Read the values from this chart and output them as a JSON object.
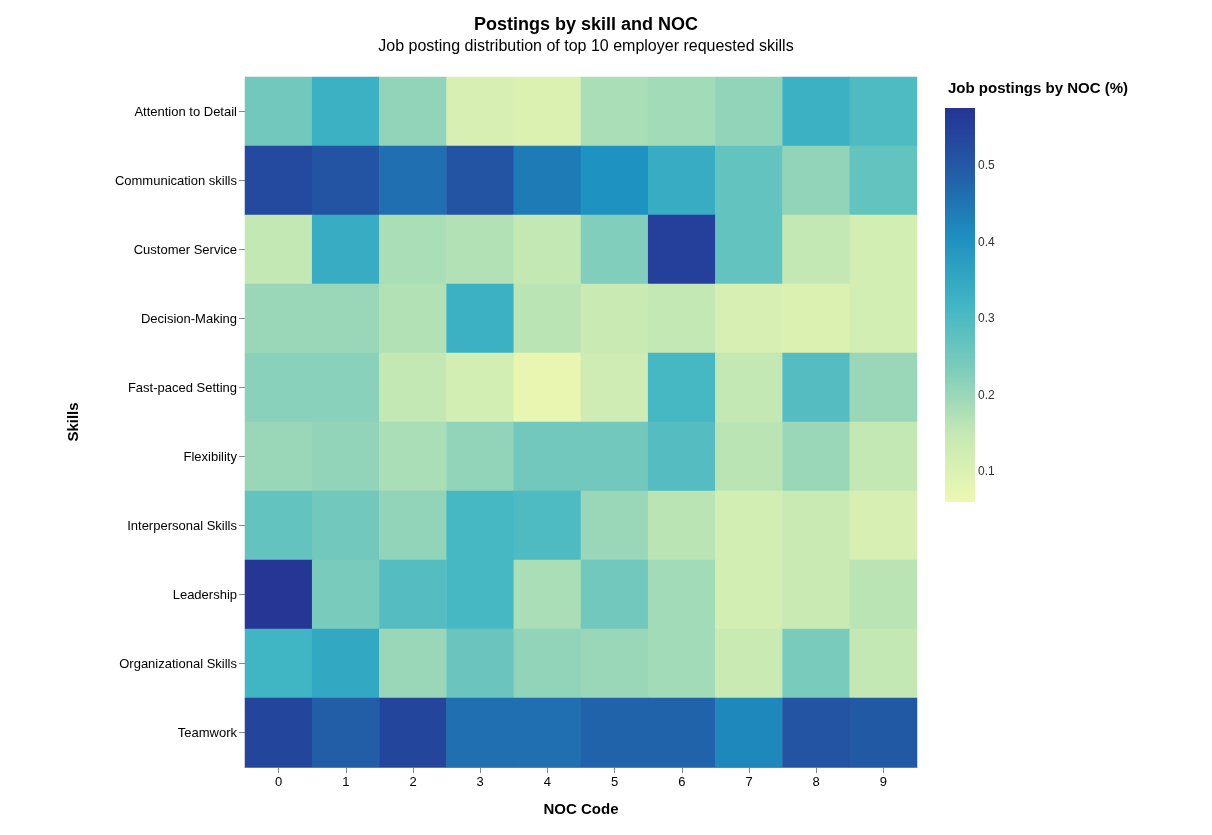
{
  "chart_data": {
    "type": "heatmap",
    "title": "Postings by skill and NOC",
    "subtitle": "Job posting distribution of top 10 employer requested skills",
    "xlabel": "NOC Code",
    "ylabel": "Skills",
    "clabel": "Job postings by NOC (%)",
    "categories": [
      "0",
      "1",
      "2",
      "3",
      "4",
      "5",
      "6",
      "7",
      "8",
      "9"
    ],
    "y_categories": [
      "Attention to Detail",
      "Communication skills",
      "Customer Service",
      "Decision-Making",
      "Fast-paced Setting",
      "Flexibility",
      "Interpersonal Skills",
      "Leadership",
      "Organizational Skills",
      "Teamwork"
    ],
    "cells": [
      [
        0.25,
        0.33,
        0.21,
        0.11,
        0.1,
        0.18,
        0.19,
        0.21,
        0.33,
        0.3
      ],
      [
        0.53,
        0.51,
        0.46,
        0.51,
        0.44,
        0.4,
        0.34,
        0.27,
        0.21,
        0.27
      ],
      [
        0.15,
        0.34,
        0.18,
        0.17,
        0.15,
        0.23,
        0.55,
        0.27,
        0.15,
        0.12
      ],
      [
        0.2,
        0.2,
        0.17,
        0.33,
        0.16,
        0.14,
        0.15,
        0.11,
        0.1,
        0.12
      ],
      [
        0.22,
        0.22,
        0.15,
        0.12,
        0.07,
        0.13,
        0.31,
        0.15,
        0.29,
        0.2
      ],
      [
        0.2,
        0.21,
        0.18,
        0.21,
        0.25,
        0.25,
        0.29,
        0.16,
        0.2,
        0.15
      ],
      [
        0.27,
        0.25,
        0.21,
        0.31,
        0.3,
        0.2,
        0.16,
        0.12,
        0.14,
        0.11
      ],
      [
        0.57,
        0.24,
        0.29,
        0.31,
        0.18,
        0.25,
        0.19,
        0.12,
        0.14,
        0.16
      ],
      [
        0.32,
        0.35,
        0.2,
        0.26,
        0.21,
        0.2,
        0.19,
        0.14,
        0.24,
        0.15
      ],
      [
        0.54,
        0.49,
        0.54,
        0.46,
        0.46,
        0.48,
        0.48,
        0.42,
        0.51,
        0.5
      ]
    ],
    "clim": [
      0.06,
      0.575
    ],
    "cticks": [
      0.1,
      0.2,
      0.3,
      0.4,
      0.5
    ]
  }
}
